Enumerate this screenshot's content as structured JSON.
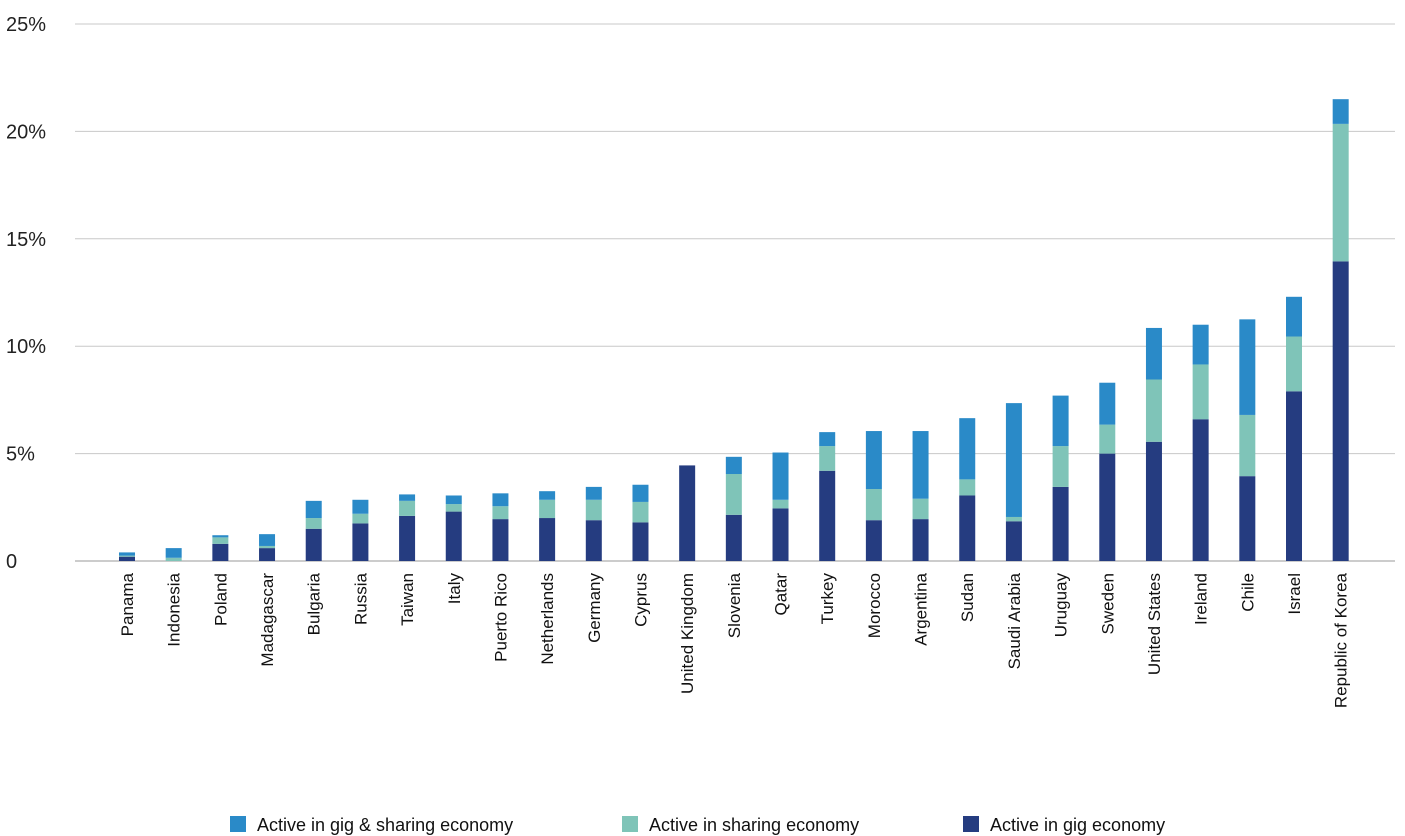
{
  "chart_data": {
    "type": "bar",
    "stacked": true,
    "categories": [
      "Panama",
      "Indonesia",
      "Poland",
      "Madagascar",
      "Bulgaria",
      "Russia",
      "Taiwan",
      "Italy",
      "Puerto Rico",
      "Netherlands",
      "Germany",
      "Cyprus",
      "United Kingdom",
      "Slovenia",
      "Qatar",
      "Turkey",
      "Morocco",
      "Argentina",
      "Sudan",
      "Saudi Arabia",
      "Uruguay",
      "Sweden",
      "United States",
      "Ireland",
      "Chile",
      "Israel",
      "Republic of Korea"
    ],
    "series": [
      {
        "name": "Active in gig economy",
        "color": "#253c80",
        "values": [
          0.2,
          0.0,
          0.8,
          0.6,
          1.5,
          1.75,
          2.1,
          2.3,
          1.95,
          2.0,
          1.9,
          1.8,
          4.45,
          2.15,
          2.45,
          4.2,
          1.9,
          1.95,
          3.05,
          1.85,
          3.45,
          5.0,
          5.55,
          6.6,
          3.95,
          7.9,
          13.95
        ]
      },
      {
        "name": "Active in sharing economy",
        "color": "#7fc4b8",
        "values": [
          0.05,
          0.15,
          0.3,
          0.1,
          0.5,
          0.45,
          0.7,
          0.35,
          0.6,
          0.85,
          0.95,
          0.95,
          0.0,
          1.9,
          0.4,
          1.15,
          1.45,
          0.95,
          0.75,
          0.2,
          1.9,
          1.35,
          2.9,
          2.55,
          2.85,
          2.55,
          6.4
        ]
      },
      {
        "name": "Active in gig & sharing economy",
        "color": "#2a8ac8",
        "values": [
          0.15,
          0.45,
          0.1,
          0.55,
          0.8,
          0.65,
          0.3,
          0.4,
          0.6,
          0.4,
          0.6,
          0.8,
          0.0,
          0.8,
          2.2,
          0.65,
          2.7,
          3.15,
          2.85,
          5.3,
          2.35,
          1.95,
          2.4,
          1.85,
          4.45,
          1.85,
          1.15
        ]
      }
    ],
    "yticks": [
      "0",
      "5%",
      "10%",
      "15%",
      "20%",
      "25%"
    ],
    "ylim": [
      0,
      25
    ],
    "grid": true,
    "legend": {
      "position": "bottom",
      "order": [
        "Active in gig & sharing economy",
        "Active in sharing economy",
        "Active in gig economy"
      ]
    }
  }
}
